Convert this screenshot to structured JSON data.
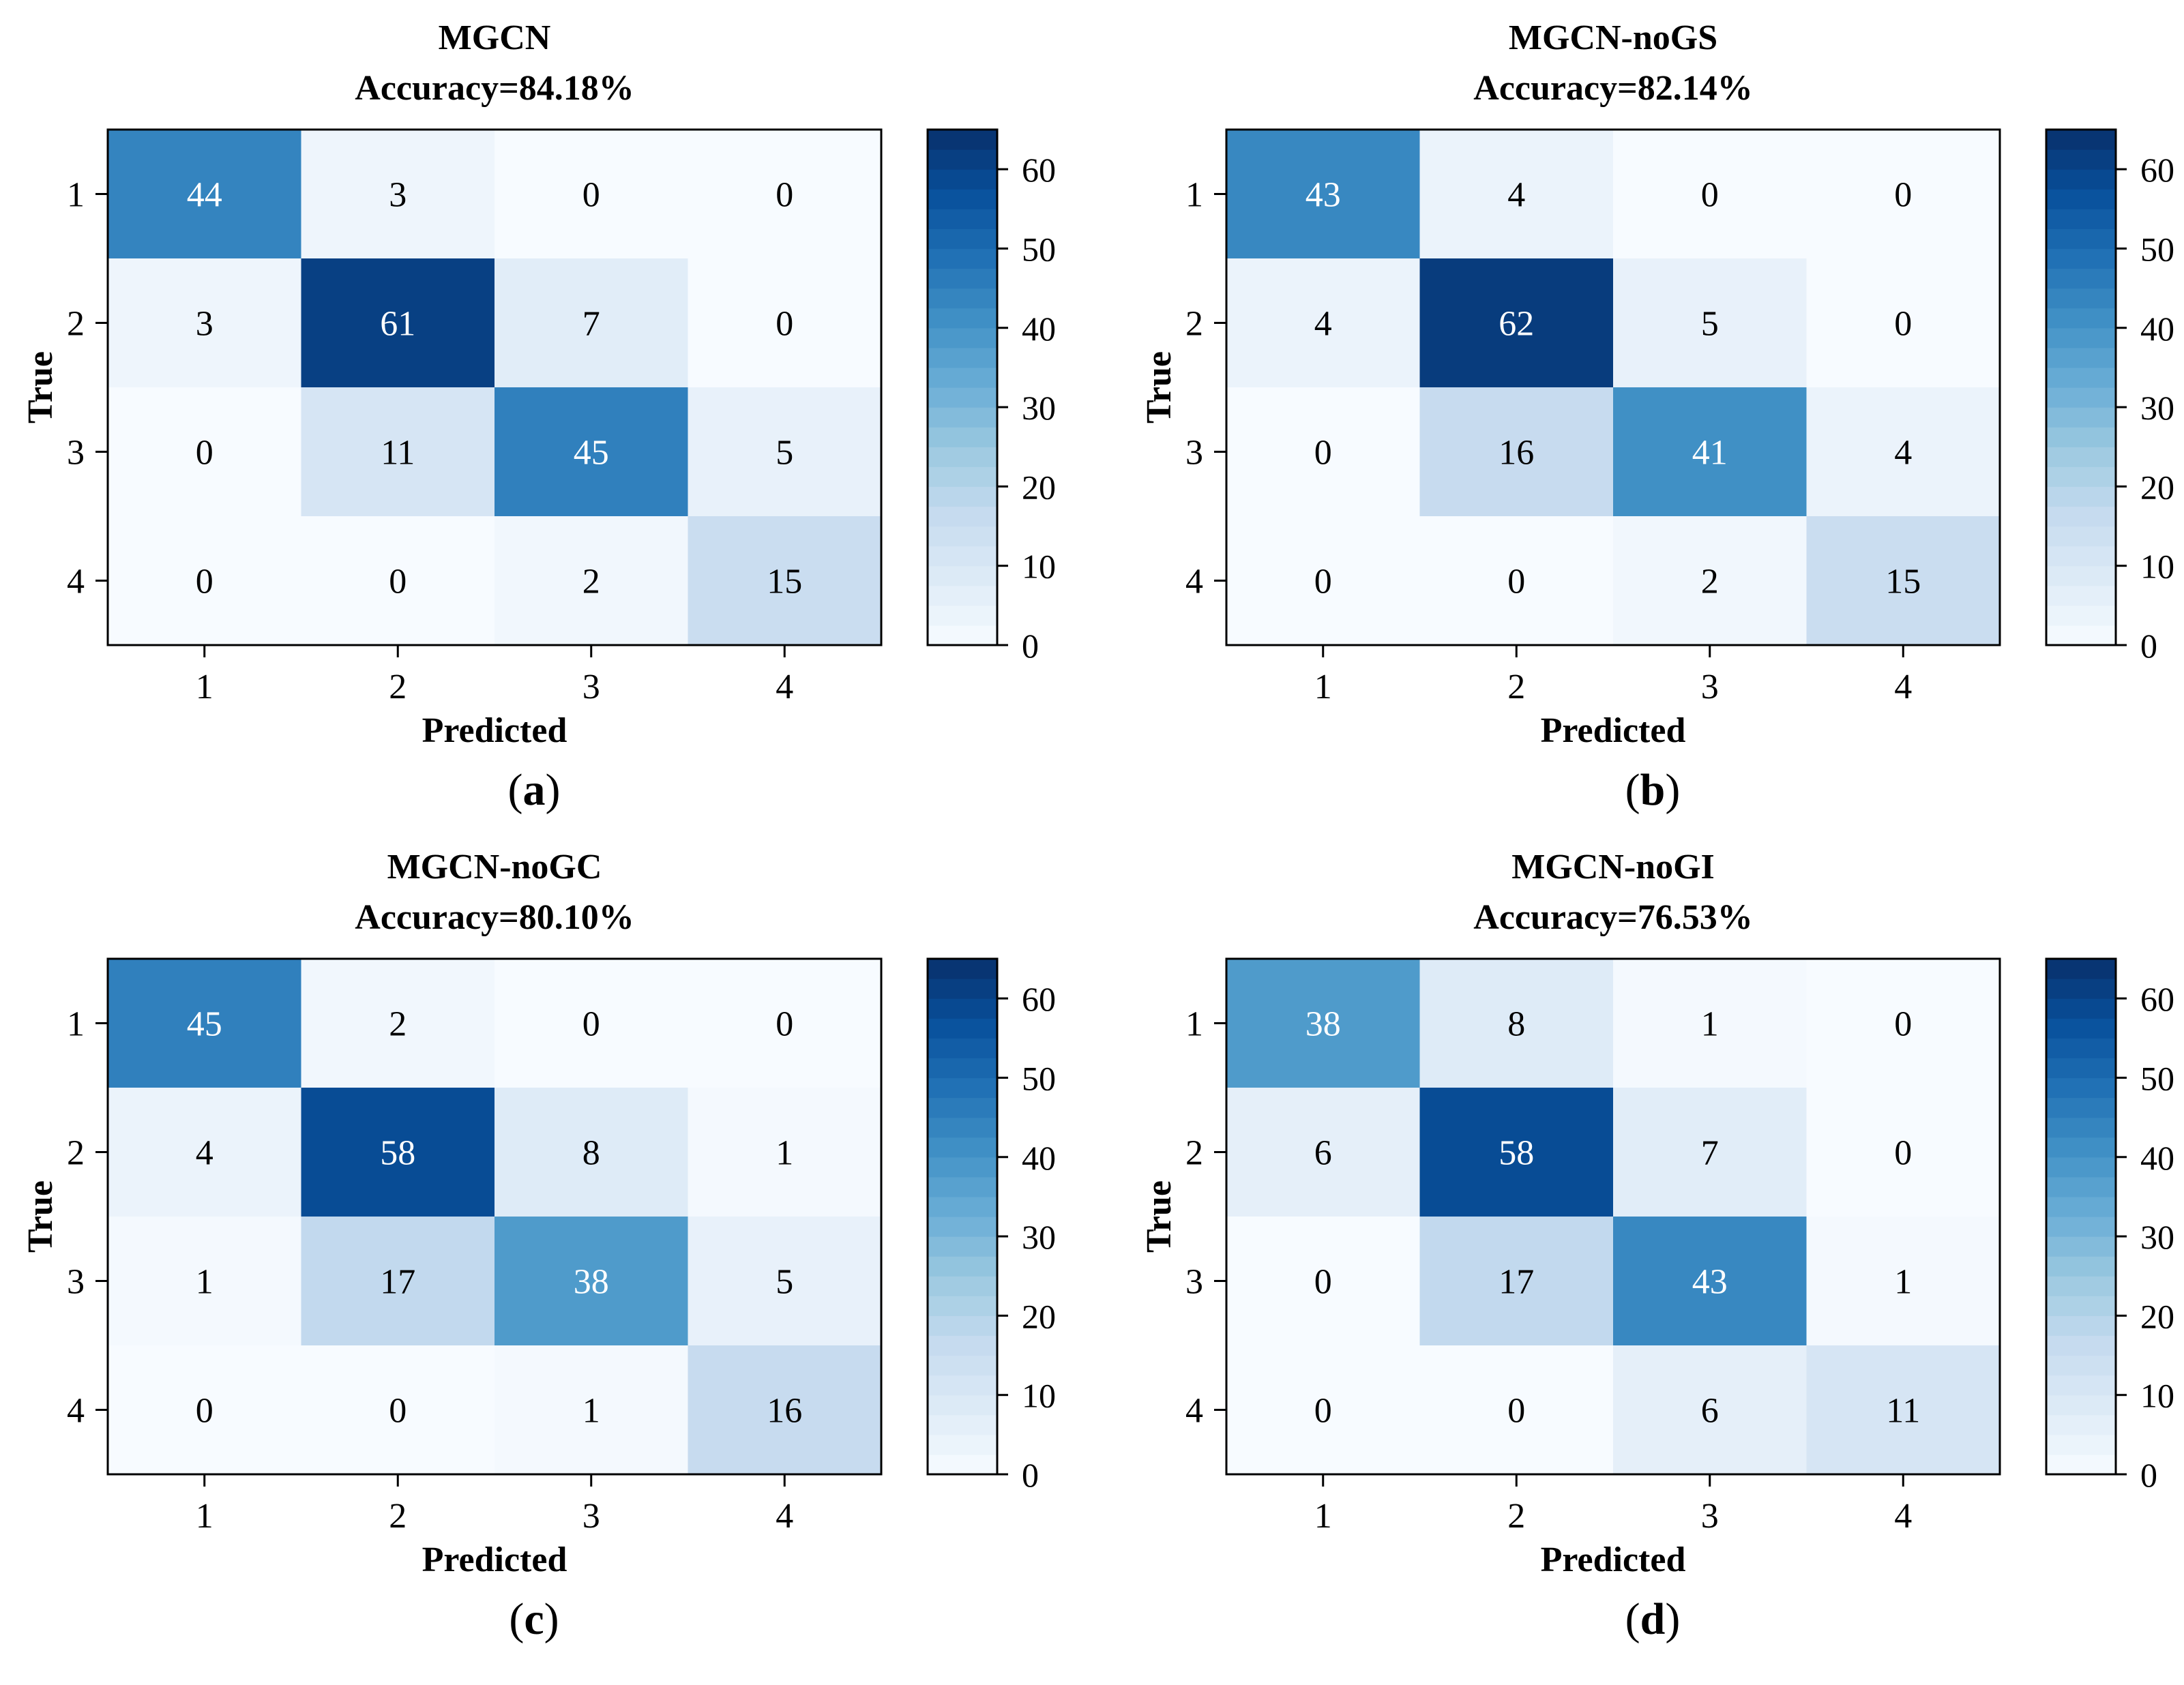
{
  "chart_data": [
    {
      "type": "heatmap",
      "panel_label": "(a)",
      "title": "MGCN",
      "subtitle": "Accuracy=84.18%",
      "xlabel": "Predicted",
      "ylabel": "True",
      "x_categories": [
        "1",
        "2",
        "3",
        "4"
      ],
      "y_categories": [
        "1",
        "2",
        "3",
        "4"
      ],
      "matrix": [
        [
          44,
          3,
          0,
          0
        ],
        [
          3,
          61,
          7,
          0
        ],
        [
          0,
          11,
          45,
          5
        ],
        [
          0,
          0,
          2,
          15
        ]
      ],
      "colorbar": {
        "min": 0,
        "max": 65,
        "ticks": [
          0,
          10,
          20,
          30,
          40,
          50,
          60
        ],
        "tick_labels": [
          "0",
          "10",
          "20",
          "30",
          "40",
          "50",
          "60"
        ]
      }
    },
    {
      "type": "heatmap",
      "panel_label": "(b)",
      "title": "MGCN-noGS",
      "subtitle": "Accuracy=82.14%",
      "xlabel": "Predicted",
      "ylabel": "True",
      "x_categories": [
        "1",
        "2",
        "3",
        "4"
      ],
      "y_categories": [
        "1",
        "2",
        "3",
        "4"
      ],
      "matrix": [
        [
          43,
          4,
          0,
          0
        ],
        [
          4,
          62,
          5,
          0
        ],
        [
          0,
          16,
          41,
          4
        ],
        [
          0,
          0,
          2,
          15
        ]
      ],
      "colorbar": {
        "min": 0,
        "max": 65,
        "ticks": [
          0,
          10,
          20,
          30,
          40,
          50,
          60
        ],
        "tick_labels": [
          "0",
          "10",
          "20",
          "30",
          "40",
          "50",
          "60"
        ]
      }
    },
    {
      "type": "heatmap",
      "panel_label": "(c)",
      "title": "MGCN-noGC",
      "subtitle": "Accuracy=80.10%",
      "xlabel": "Predicted",
      "ylabel": "True",
      "x_categories": [
        "1",
        "2",
        "3",
        "4"
      ],
      "y_categories": [
        "1",
        "2",
        "3",
        "4"
      ],
      "matrix": [
        [
          45,
          2,
          0,
          0
        ],
        [
          4,
          58,
          8,
          1
        ],
        [
          1,
          17,
          38,
          5
        ],
        [
          0,
          0,
          1,
          16
        ]
      ],
      "colorbar": {
        "min": 0,
        "max": 65,
        "ticks": [
          0,
          10,
          20,
          30,
          40,
          50,
          60
        ],
        "tick_labels": [
          "0",
          "10",
          "20",
          "30",
          "40",
          "50",
          "60"
        ]
      }
    },
    {
      "type": "heatmap",
      "panel_label": "(d)",
      "title": "MGCN-noGI",
      "subtitle": "Accuracy=76.53%",
      "xlabel": "Predicted",
      "ylabel": "True",
      "x_categories": [
        "1",
        "2",
        "3",
        "4"
      ],
      "y_categories": [
        "1",
        "2",
        "3",
        "4"
      ],
      "matrix": [
        [
          38,
          8,
          1,
          0
        ],
        [
          6,
          58,
          7,
          0
        ],
        [
          0,
          17,
          43,
          1
        ],
        [
          0,
          0,
          6,
          11
        ]
      ],
      "colorbar": {
        "min": 0,
        "max": 65,
        "ticks": [
          0,
          10,
          20,
          30,
          40,
          50,
          60
        ],
        "tick_labels": [
          "0",
          "10",
          "20",
          "30",
          "40",
          "50",
          "60"
        ]
      }
    }
  ],
  "colors": {
    "scale": [
      "#f7fbff",
      "#deebf7",
      "#c6dbef",
      "#9ecae1",
      "#6baed6",
      "#4292c6",
      "#2171b5",
      "#08519c",
      "#08306b"
    ],
    "text_dark": "#000000",
    "text_light": "#ffffff",
    "frame": "#000000"
  }
}
